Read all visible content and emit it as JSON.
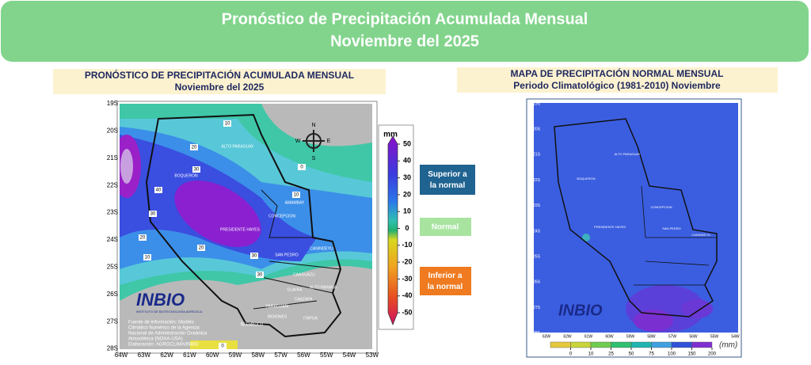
{
  "header": {
    "title_line1": "Pronóstico de Precipitación Acumulada Mensual",
    "title_line2": "Noviembre  del 2025"
  },
  "left_panel": {
    "title": "PRONÓSTICO DE PRECIPITACIÓN ACUMULADA MENSUAL",
    "subtitle": "Noviembre del 2025",
    "unit": "mm",
    "scale_ticks": [
      50,
      40,
      30,
      20,
      10,
      0,
      -10,
      -20,
      -30,
      -40,
      -50
    ],
    "lat_labels": [
      "19S",
      "20S",
      "21S",
      "22S",
      "23S",
      "24S",
      "25S",
      "26S",
      "27S",
      "28S"
    ],
    "lon_labels": [
      "64W",
      "63W",
      "62W",
      "61W",
      "60W",
      "59W",
      "58W",
      "57W",
      "56W",
      "55W",
      "54W",
      "53W"
    ],
    "regions": [
      "ALTO PARAGUAY",
      "BOQUERON",
      "AMAMBAY",
      "CONCEPCION",
      "PRESIDENTE HAYES",
      "SAN PEDRO",
      "CANINDEYU",
      "CAAGUAZU",
      "ALTO PARANA",
      "GUAIRA",
      "CAAZAPA",
      "PARAGUARI",
      "MISIONES",
      "ÑEEMBUCU",
      "ITAPUA"
    ],
    "contour_labels": [
      10,
      20,
      30,
      40,
      30,
      20,
      10,
      0,
      0,
      10,
      20,
      30,
      30
    ],
    "compass": [
      "N",
      "E",
      "S",
      "W"
    ],
    "logo": "INBIO",
    "logo_sub": "INSTITUTO DE BIOTECNOLOGÍA AGRÍCOLA",
    "source_lines": [
      "Fuente de información: Modelo",
      "Climático Numérico de la Agencia",
      "Nacional de Administración Oceánica",
      "Atmosférica (NOAA-USA)",
      "Elaboración: AGROCLIMA/INBIO"
    ]
  },
  "legend": [
    "Superior a la normal",
    "Normal",
    "Inferior a la normal"
  ],
  "right_panel": {
    "title": "MAPA DE PRECIPITACIÓN  NORMAL MENSUAL",
    "subtitle": "Periodo Climatológico (1981-2010)  Noviembre",
    "unit": "(mm)",
    "scale_ticks": [
      0,
      10,
      25,
      50,
      75,
      100,
      150,
      200
    ],
    "lat_labels": [
      "19S",
      "20S",
      "21S",
      "22S",
      "23S",
      "24S",
      "25S",
      "26S",
      "27S",
      "28S"
    ],
    "lon_labels": [
      "63W",
      "62W",
      "61W",
      "60W",
      "59W",
      "58W",
      "57W",
      "56W",
      "55W",
      "54W"
    ],
    "regions": [
      "ALTO PARAGUAY",
      "BOQUERON",
      "PRESIDENTE HAYES",
      "SAN PEDRO",
      "CONCEPCION",
      "CANINDEYU"
    ],
    "logo": "INBIO"
  }
}
